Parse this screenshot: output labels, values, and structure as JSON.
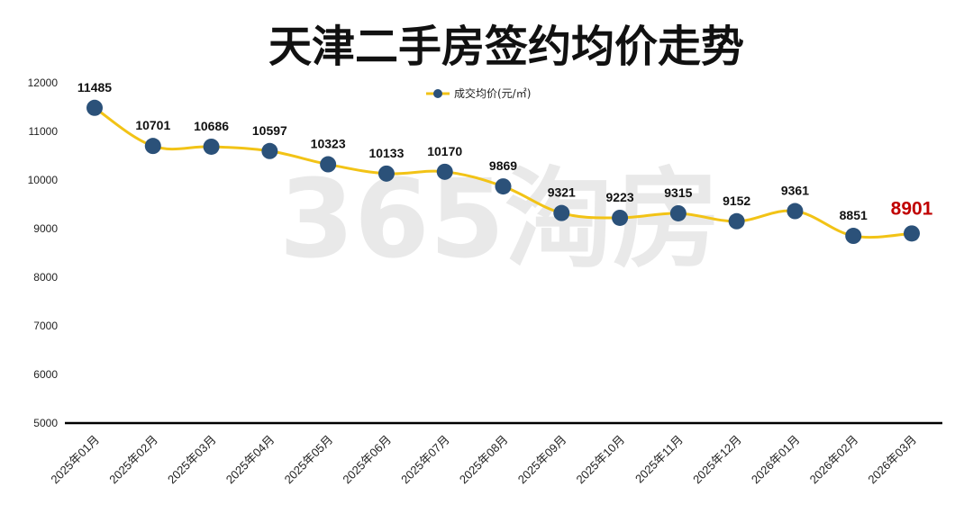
{
  "chart_data": {
    "type": "line",
    "title": "天津二手房签约均价走势",
    "categories": [
      "2025年01月",
      "2025年02月",
      "2025年03月",
      "2025年04月",
      "2025年05月",
      "2025年06月",
      "2025年07月",
      "2025年08月",
      "2025年09月",
      "2025年10月",
      "2025年11月",
      "2025年12月",
      "2026年01月",
      "2026年02月",
      "2026年03月"
    ],
    "series": [
      {
        "name": "成交均价(元/㎡)",
        "values": [
          11485,
          10701,
          10686,
          10597,
          10323,
          10133,
          10170,
          9869,
          9321,
          9223,
          9315,
          9152,
          9361,
          8851,
          8901
        ]
      }
    ],
    "ylim": [
      5000,
      12000
    ],
    "yticks": [
      5000,
      6000,
      7000,
      8000,
      9000,
      10000,
      11000,
      12000
    ],
    "xlabel": "",
    "ylabel": "",
    "grid": false,
    "legend_position": "top-center",
    "highlight_last": true,
    "colors": {
      "line": "#f2c316",
      "marker": "#2b5179",
      "last_label": "#c00000",
      "axis": "#000000"
    }
  },
  "watermark": "365淘房"
}
